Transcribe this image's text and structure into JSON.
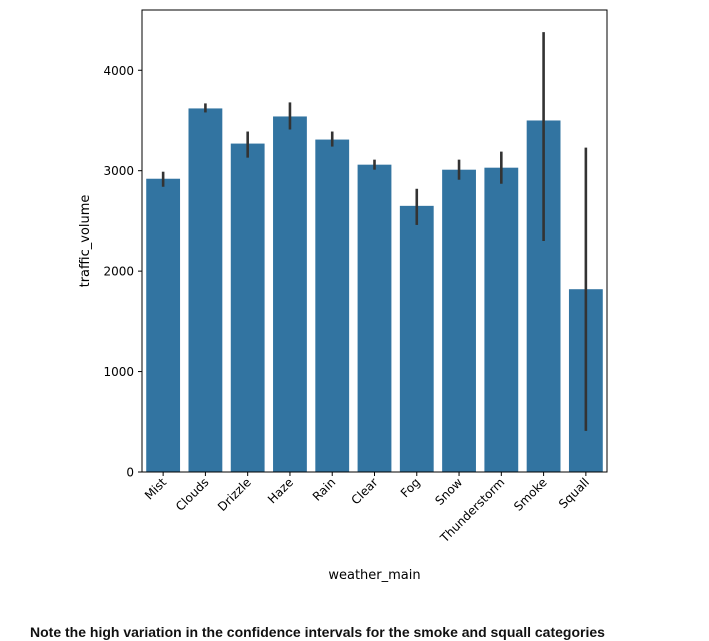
{
  "chart_data": {
    "type": "bar",
    "categories": [
      "Mist",
      "Clouds",
      "Drizzle",
      "Haze",
      "Rain",
      "Clear",
      "Fog",
      "Snow",
      "Thunderstorm",
      "Smoke",
      "Squall"
    ],
    "values": [
      2920,
      3620,
      3270,
      3540,
      3310,
      3060,
      2650,
      3010,
      3030,
      3500,
      1820
    ],
    "ci_low": [
      2840,
      3580,
      3130,
      3410,
      3240,
      3010,
      2460,
      2910,
      2870,
      2300,
      410
    ],
    "ci_high": [
      2990,
      3670,
      3390,
      3680,
      3390,
      3110,
      2820,
      3110,
      3190,
      4380,
      3230
    ],
    "xlabel": "weather_main",
    "ylabel": "traffic_volume",
    "ylim": [
      0,
      4600
    ],
    "yticks": [
      0,
      1000,
      2000,
      3000,
      4000
    ],
    "grid": false,
    "colors": {
      "bar": "#3274a1",
      "errorbar": "#333333"
    }
  },
  "caption": "Note the high variation in the confidence intervals for the smoke and squall categories"
}
